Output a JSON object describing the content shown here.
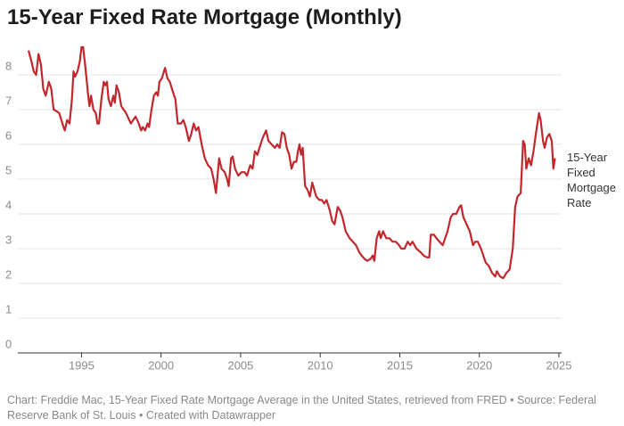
{
  "chart_data": {
    "type": "line",
    "title": "15-Year Fixed Rate Mortgage (Monthly)",
    "note": "Chart: Freddie Mac, 15-Year Fixed Rate Mortgage Average in the United States, retrieved from FRED • Source: Federal Reserve Bank of St. Louis • Created with Datawrapper",
    "x": [
      1991.67,
      1991.85,
      1992.0,
      1992.15,
      1992.3,
      1992.45,
      1992.6,
      1992.75,
      1992.95,
      1993.1,
      1993.25,
      1993.45,
      1993.6,
      1993.8,
      1993.95,
      1994.1,
      1994.25,
      1994.4,
      1994.5,
      1994.6,
      1994.75,
      1994.9,
      1995.0,
      1995.1,
      1995.25,
      1995.4,
      1995.5,
      1995.6,
      1995.75,
      1995.9,
      1996.0,
      1996.1,
      1996.25,
      1996.4,
      1996.5,
      1996.6,
      1996.7,
      1996.85,
      1997.0,
      1997.1,
      1997.2,
      1997.35,
      1997.5,
      1997.65,
      1997.8,
      1997.95,
      1998.1,
      1998.25,
      1998.4,
      1998.6,
      1998.75,
      1998.85,
      1999.0,
      1999.15,
      1999.25,
      1999.4,
      1999.55,
      1999.7,
      1999.8,
      1999.9,
      2000.05,
      2000.25,
      2000.4,
      2000.55,
      2000.75,
      2000.9,
      2001.05,
      2001.25,
      2001.4,
      2001.55,
      2001.75,
      2001.9,
      2002.05,
      2002.2,
      2002.35,
      2002.55,
      2002.75,
      2002.95,
      2003.15,
      2003.3,
      2003.45,
      2003.55,
      2003.65,
      2003.8,
      2004.0,
      2004.15,
      2004.25,
      2004.4,
      2004.5,
      2004.65,
      2004.85,
      2005.05,
      2005.25,
      2005.4,
      2005.6,
      2005.75,
      2005.9,
      2006.05,
      2006.25,
      2006.4,
      2006.6,
      2006.75,
      2006.95,
      2007.15,
      2007.3,
      2007.45,
      2007.6,
      2007.75,
      2007.9,
      2008.05,
      2008.2,
      2008.35,
      2008.5,
      2008.6,
      2008.7,
      2008.8,
      2008.9,
      2009.05,
      2009.2,
      2009.35,
      2009.5,
      2009.75,
      2009.95,
      2010.1,
      2010.25,
      2010.4,
      2010.6,
      2010.75,
      2010.9,
      2011.1,
      2011.25,
      2011.4,
      2011.6,
      2011.85,
      2012.05,
      2012.25,
      2012.45,
      2012.6,
      2012.8,
      2012.95,
      2013.15,
      2013.3,
      2013.4,
      2013.55,
      2013.7,
      2013.8,
      2013.95,
      2014.15,
      2014.35,
      2014.55,
      2014.75,
      2014.95,
      2015.1,
      2015.3,
      2015.5,
      2015.65,
      2015.8,
      2016.05,
      2016.3,
      2016.5,
      2016.7,
      2016.85,
      2016.95,
      2017.15,
      2017.3,
      2017.5,
      2017.7,
      2017.85,
      2018.0,
      2018.2,
      2018.35,
      2018.55,
      2018.75,
      2018.85,
      2019.0,
      2019.2,
      2019.4,
      2019.6,
      2019.75,
      2019.9,
      2020.1,
      2020.25,
      2020.4,
      2020.6,
      2020.8,
      2021.0,
      2021.1,
      2021.3,
      2021.5,
      2021.7,
      2021.9,
      2022.1,
      2022.25,
      2022.4,
      2022.6,
      2022.75,
      2022.85,
      2022.95,
      2023.1,
      2023.25,
      2023.4,
      2023.55,
      2023.75,
      2023.85,
      2024.0,
      2024.1,
      2024.25,
      2024.4,
      2024.55,
      2024.65,
      2024.75
    ],
    "series": [
      {
        "name": "15-Year Fixed Mortgage Rate",
        "color": "#c1272d",
        "values": [
          8.7,
          8.4,
          8.1,
          8.0,
          8.6,
          8.3,
          7.6,
          7.4,
          7.8,
          7.6,
          7.0,
          6.95,
          6.9,
          6.6,
          6.4,
          6.7,
          6.6,
          7.3,
          8.1,
          7.95,
          8.1,
          8.4,
          8.8,
          8.8,
          8.2,
          7.5,
          7.1,
          7.4,
          7.0,
          6.9,
          6.6,
          6.6,
          7.3,
          7.8,
          7.7,
          7.8,
          7.3,
          7.1,
          7.4,
          7.2,
          7.7,
          7.5,
          7.1,
          7.0,
          6.9,
          6.75,
          6.6,
          6.7,
          6.8,
          6.6,
          6.4,
          6.5,
          6.4,
          6.6,
          6.5,
          7.0,
          7.4,
          7.5,
          7.4,
          7.8,
          7.9,
          8.2,
          7.9,
          7.8,
          7.5,
          7.3,
          6.6,
          6.6,
          6.7,
          6.5,
          6.1,
          6.3,
          6.6,
          6.4,
          6.5,
          6.0,
          5.6,
          5.4,
          5.3,
          5.0,
          4.6,
          5.1,
          5.6,
          5.3,
          5.2,
          5.0,
          4.8,
          5.6,
          5.65,
          5.3,
          5.1,
          5.2,
          5.2,
          5.1,
          5.4,
          5.3,
          5.8,
          5.7,
          6.0,
          6.2,
          6.4,
          6.1,
          6.0,
          5.9,
          6.0,
          5.9,
          6.35,
          6.3,
          5.9,
          5.7,
          5.3,
          5.5,
          5.5,
          5.8,
          6.0,
          5.7,
          5.9,
          4.8,
          4.7,
          4.5,
          4.9,
          4.5,
          4.4,
          4.4,
          4.3,
          4.4,
          4.1,
          3.8,
          3.7,
          4.2,
          4.1,
          3.9,
          3.5,
          3.3,
          3.2,
          3.1,
          2.9,
          2.8,
          2.7,
          2.65,
          2.7,
          2.8,
          2.65,
          3.3,
          3.5,
          3.3,
          3.5,
          3.3,
          3.3,
          3.2,
          3.2,
          3.1,
          3.0,
          3.0,
          3.2,
          3.1,
          3.2,
          3.0,
          2.9,
          2.8,
          2.75,
          2.75,
          3.4,
          3.4,
          3.3,
          3.2,
          3.1,
          3.3,
          3.5,
          3.9,
          4.0,
          4.0,
          4.2,
          4.25,
          3.9,
          3.7,
          3.5,
          3.1,
          3.2,
          3.2,
          3.0,
          2.8,
          2.6,
          2.5,
          2.3,
          2.2,
          2.35,
          2.2,
          2.15,
          2.3,
          2.4,
          3.0,
          4.2,
          4.5,
          4.6,
          6.1,
          6.0,
          5.3,
          5.6,
          5.4,
          5.8,
          6.3,
          6.9,
          6.7,
          6.1,
          5.9,
          6.2,
          6.3,
          6.1,
          5.3,
          5.6
        ]
      }
    ],
    "xlim": [
      1991,
      2025
    ],
    "xticks": [
      1995,
      2000,
      2005,
      2010,
      2015,
      2020,
      2025
    ],
    "ylim": [
      0,
      9
    ],
    "yticks": [
      0,
      1,
      2,
      3,
      4,
      5,
      6,
      7,
      8
    ],
    "grid": true
  }
}
